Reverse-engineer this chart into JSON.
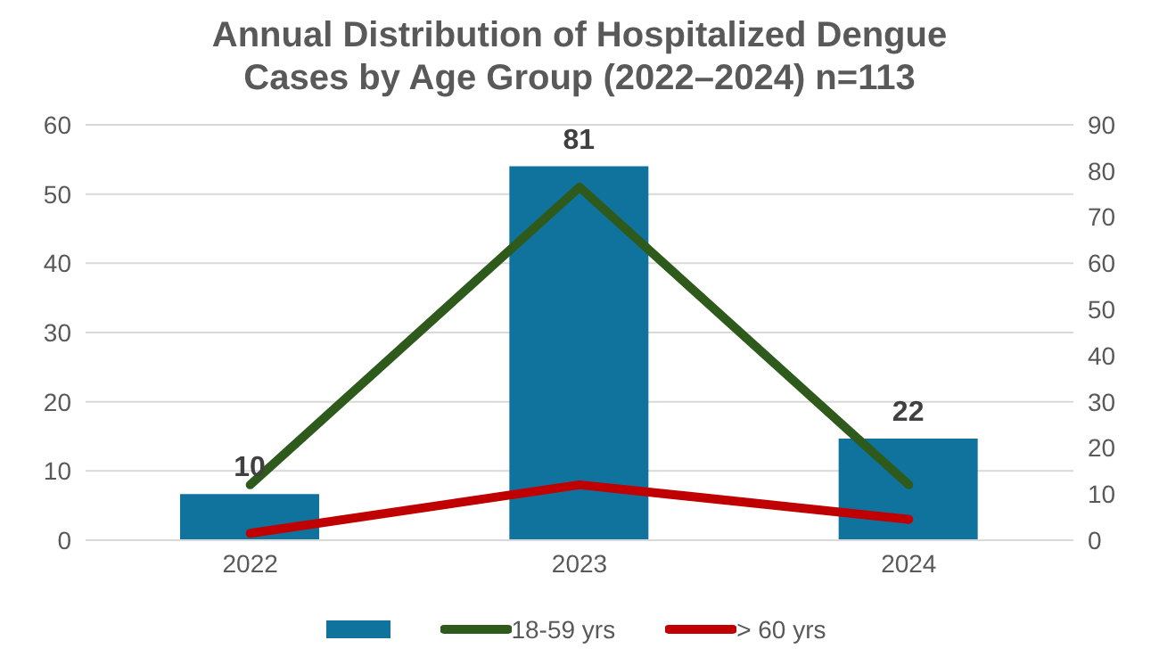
{
  "chart_data": {
    "type": "bar",
    "title": "Annual Distribution of Hospitalized Dengue Cases by Age Group (2022–2024) n=113",
    "categories": [
      "2022",
      "2023",
      "2024"
    ],
    "series": [
      {
        "axis": "y2",
        "color": "#10739e",
        "values": [
          10,
          81,
          22
        ],
        "value_labels": [
          "10",
          "81",
          "22"
        ]
      },
      {
        "type": "line",
        "name": "18-59 yrs",
        "color": "#2e5a1c",
        "values": [
          8,
          51,
          8
        ]
      },
      {
        "type": "line",
        "name": "> 60 yrs",
        "color": "#c00000",
        "values": [
          1,
          8,
          3
        ]
      }
    ],
    "ylim": [
      0,
      60
    ],
    "yticks": [
      0,
      10,
      20,
      30,
      40,
      50,
      60
    ],
    "y2lim": [
      0,
      90
    ],
    "y2ticks": [
      0,
      10,
      20,
      30,
      40,
      50,
      60,
      70,
      80,
      90
    ],
    "grid": "y",
    "legend": "bottom",
    "marker": "none",
    "line_style": "solid"
  }
}
